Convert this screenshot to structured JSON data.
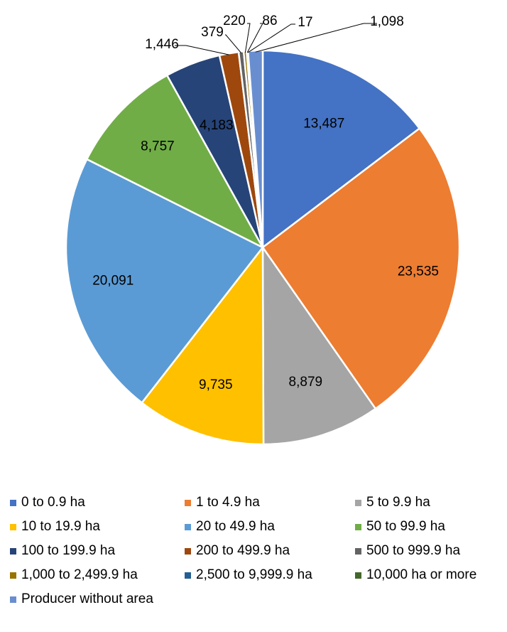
{
  "chart_data": {
    "type": "pie",
    "title": "",
    "legend_position": "bottom",
    "slices": [
      {
        "label": "0 to 0.9 ha",
        "value": 13487,
        "value_label": "13,487",
        "color": "#4472C4"
      },
      {
        "label": "1 to 4.9 ha",
        "value": 23535,
        "value_label": "23,535",
        "color": "#ED7D31"
      },
      {
        "label": "5 to 9.9 ha",
        "value": 8879,
        "value_label": "8,879",
        "color": "#A5A5A5"
      },
      {
        "label": "10 to 19.9 ha",
        "value": 9735,
        "value_label": "9,735",
        "color": "#FFC000"
      },
      {
        "label": "20 to 49.9 ha",
        "value": 20091,
        "value_label": "20,091",
        "color": "#5B9BD5"
      },
      {
        "label": "50 to 99.9 ha",
        "value": 8757,
        "value_label": "8,757",
        "color": "#70AD47"
      },
      {
        "label": "100 to 199.9 ha",
        "value": 4183,
        "value_label": "4,183",
        "color": "#264478"
      },
      {
        "label": "200 to 499.9 ha",
        "value": 1446,
        "value_label": "1,446",
        "color": "#9E480E"
      },
      {
        "label": "500 to 999.9 ha",
        "value": 379,
        "value_label": "379",
        "color": "#636363"
      },
      {
        "label": "1,000 to 2,499.9 ha",
        "value": 220,
        "value_label": "220",
        "color": "#997300"
      },
      {
        "label": "2,500 to 9,999.9 ha",
        "value": 86,
        "value_label": "86",
        "color": "#255E91"
      },
      {
        "label": "10,000 ha or more",
        "value": 17,
        "value_label": "17",
        "color": "#43682B"
      },
      {
        "label": "Producer without area",
        "value": 1098,
        "value_label": "1,098",
        "color": "#698ED0"
      }
    ]
  }
}
